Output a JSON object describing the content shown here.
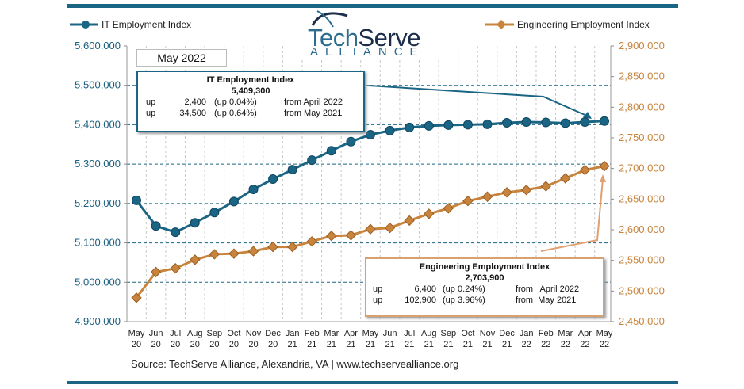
{
  "chart_data": {
    "type": "line",
    "categories": [
      "May 20",
      "Jun 20",
      "Jul 20",
      "Aug 20",
      "Sep 20",
      "Oct 20",
      "Nov 20",
      "Dec 20",
      "Jan 21",
      "Feb 21",
      "Mar 21",
      "Apr 21",
      "May 21",
      "Jun 21",
      "Jul 21",
      "Aug 21",
      "Sep 21",
      "Oct 21",
      "Nov 21",
      "Dec 21",
      "Jan 22",
      "Feb 22",
      "Mar 22",
      "Apr 22",
      "May 22"
    ],
    "series": [
      {
        "name": "IT Employment Index",
        "axis": "left",
        "color": "#1b6584",
        "values": [
          5208000,
          5143000,
          5127000,
          5151000,
          5177000,
          5205000,
          5236000,
          5262000,
          5286000,
          5310000,
          5334000,
          5357000,
          5374800,
          5385000,
          5393000,
          5397000,
          5399000,
          5400000,
          5401000,
          5405000,
          5407000,
          5406000,
          5404000,
          5406900,
          5409300
        ]
      },
      {
        "name": "Engineering Employment Index",
        "axis": "right",
        "color": "#c8843c",
        "values": [
          2489000,
          2531000,
          2537000,
          2551000,
          2560000,
          2561000,
          2565000,
          2572000,
          2572000,
          2581000,
          2590000,
          2591000,
          2601000,
          2603000,
          2615000,
          2626000,
          2635000,
          2647000,
          2654000,
          2661000,
          2665000,
          2671000,
          2684000,
          2697500,
          2703900
        ]
      }
    ],
    "y_left": {
      "range": [
        4900000,
        5600000
      ],
      "ticks": [
        "4,900,000",
        "5,000,000",
        "5,100,000",
        "5,200,000",
        "5,300,000",
        "5,400,000",
        "5,500,000",
        "5,600,000"
      ]
    },
    "y_right": {
      "range": [
        2450000,
        2900000
      ],
      "ticks": [
        "2,450,000",
        "2,500,000",
        "2,550,000",
        "2,600,000",
        "2,650,000",
        "2,700,000",
        "2,750,000",
        "2,800,000",
        "2,850,000",
        "2,900,000"
      ]
    },
    "grid": true,
    "legend_placement": "top"
  },
  "logo": {
    "line1a": "Tech",
    "line1b": "Serve",
    "line2": "ALLIANCE"
  },
  "period_label": "May 2022",
  "it_box": {
    "title": "IT Employment Index",
    "value": "5,409,300",
    "rows": [
      [
        "up",
        "2,400",
        "(up 0.04%)",
        "from  April 2022"
      ],
      [
        "up",
        "34,500",
        "(up 0.64%)",
        "from  May 2021"
      ]
    ]
  },
  "eng_box": {
    "title": "Engineering Employment Index",
    "value": "2,703,900",
    "rows": [
      [
        "up",
        "6,400",
        "(up  0.24%)",
        "from   April 2022"
      ],
      [
        "up",
        "102,900",
        "(up  3.96%)",
        "from  May 2021"
      ]
    ]
  },
  "source": "Source: TechServe Alliance, Alexandria, VA | www.techservealliance.org",
  "colors": {
    "it": "#1b6584",
    "eng": "#c8843c",
    "bar": "#1b6584"
  }
}
